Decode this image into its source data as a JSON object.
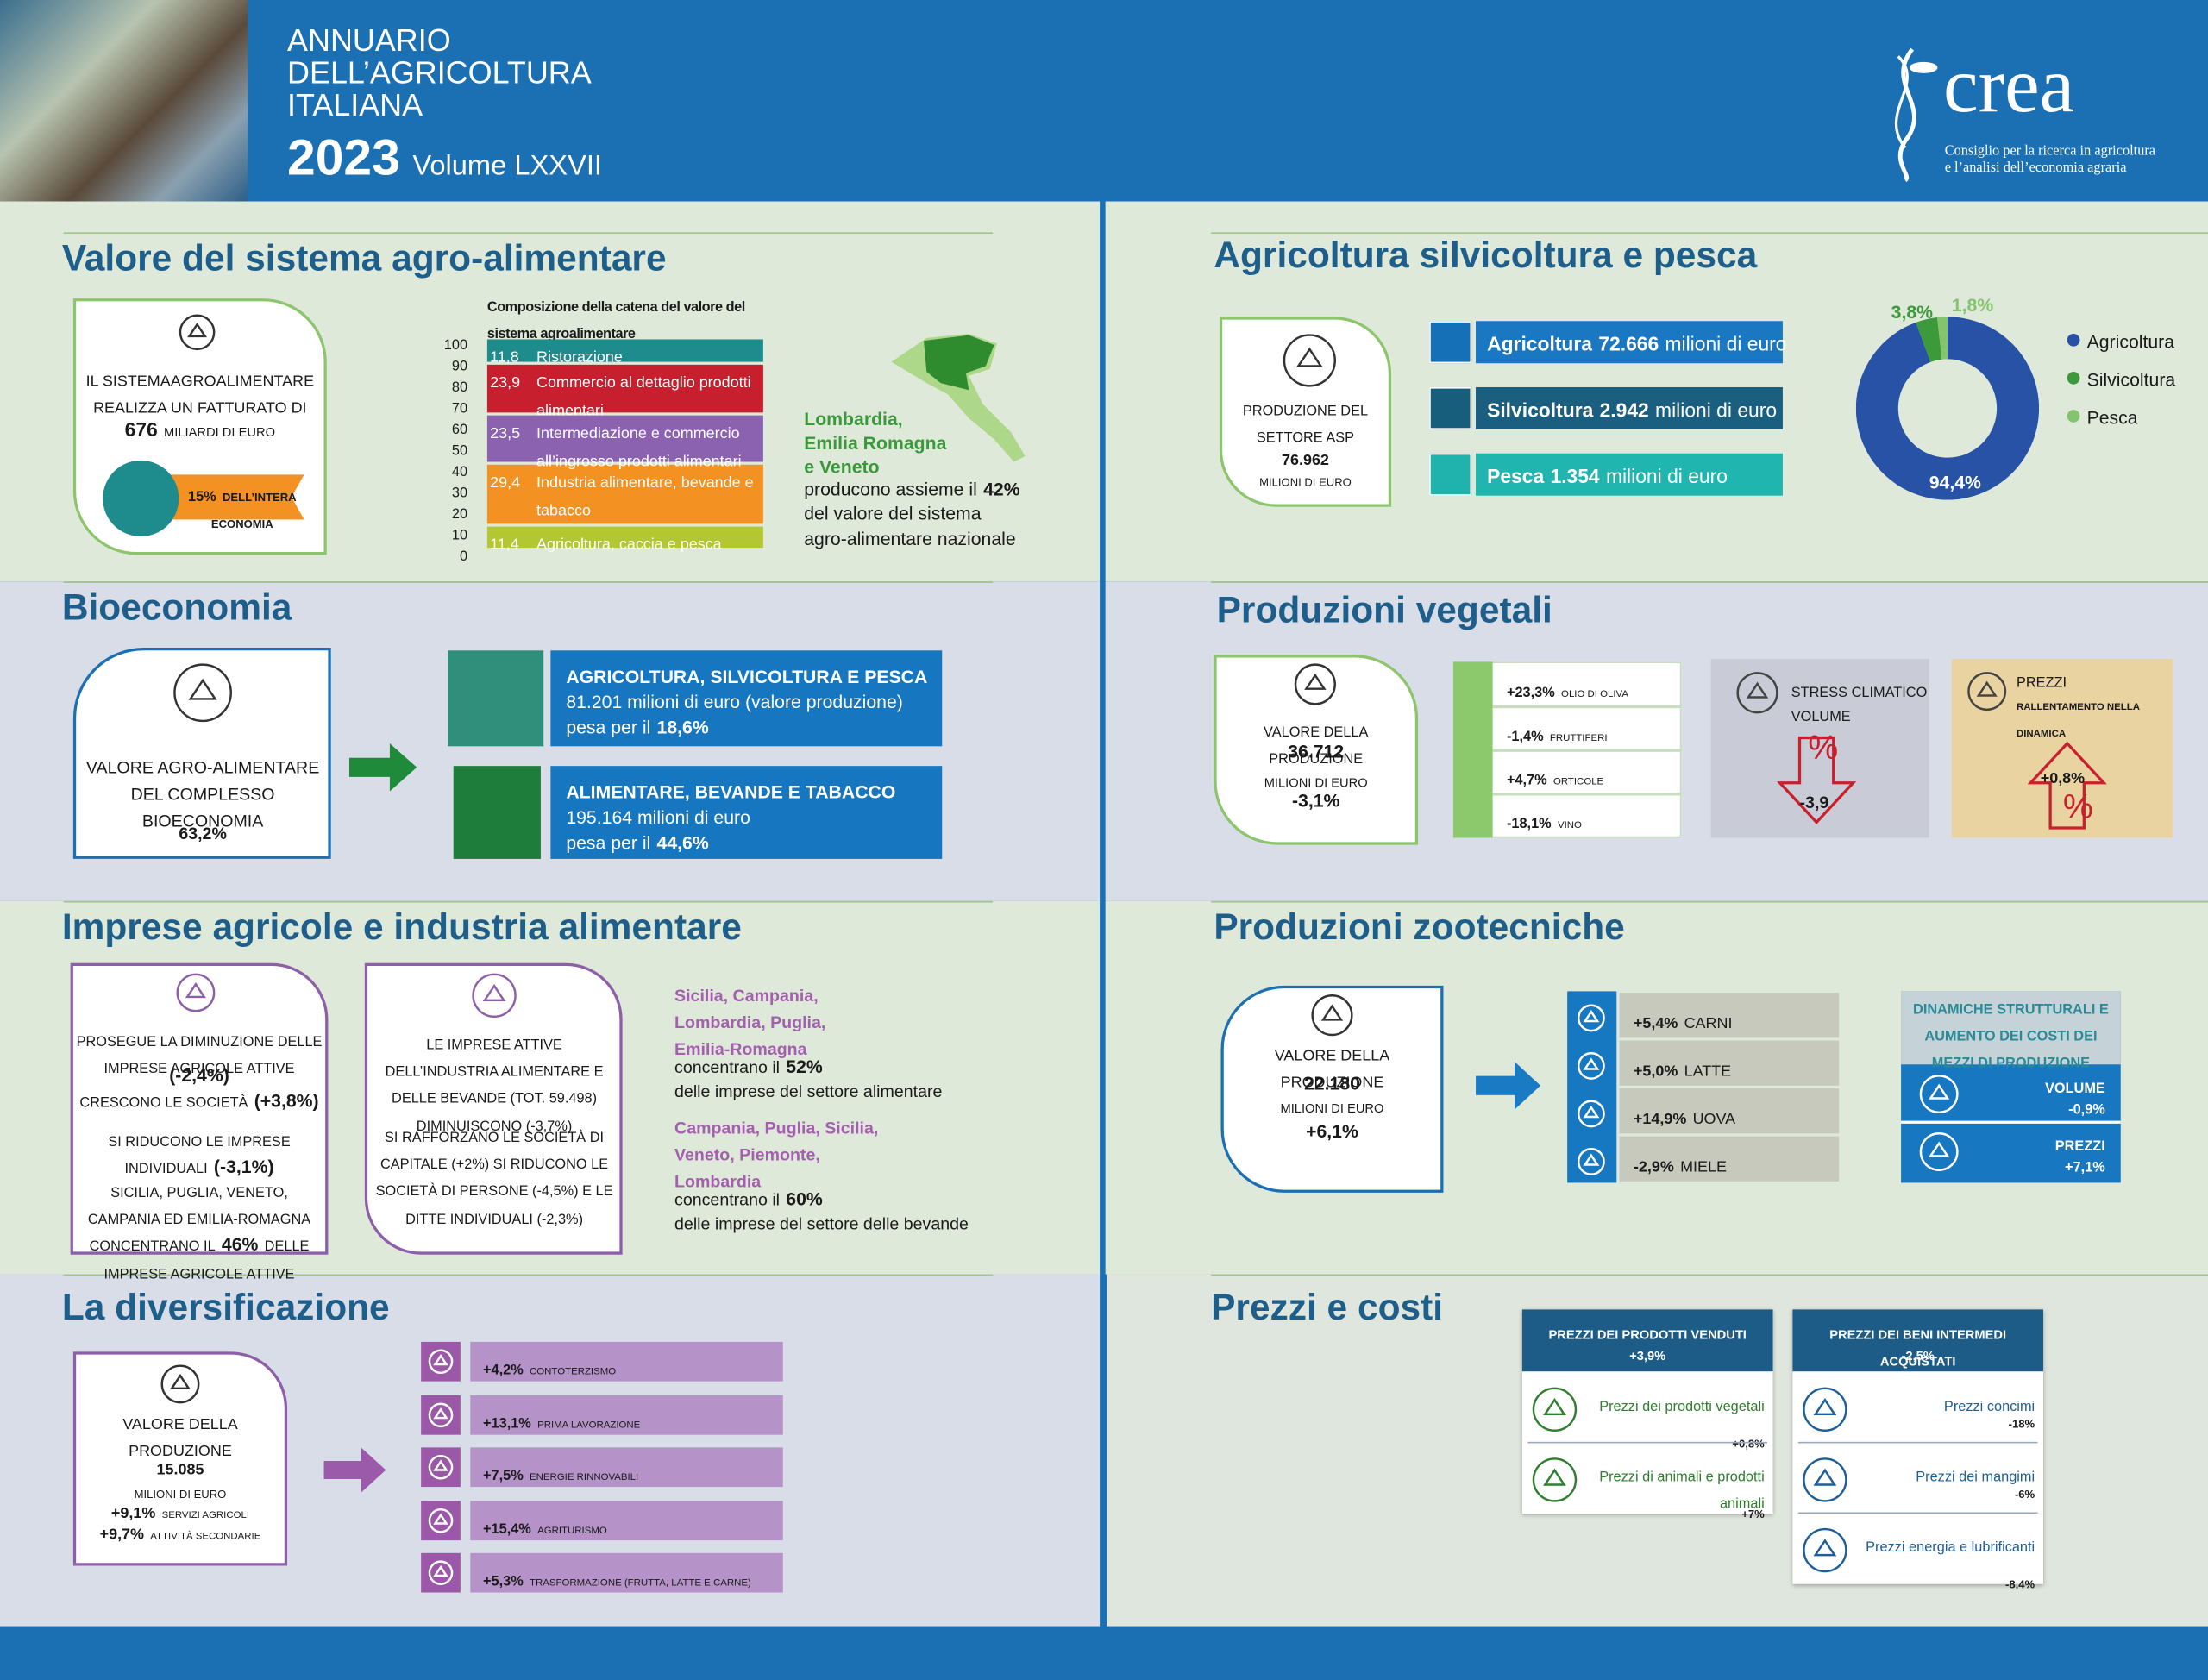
{
  "header": {
    "title_lines": [
      "ANNUARIO",
      "DELL’AGRICOLTURA",
      "ITALIANA"
    ],
    "year": "2023",
    "volume": "Volume LXXVII",
    "logo": "crea",
    "logo_subtitle": [
      "Consiglio per la ricerca in agricoltura",
      "e l’analisi dell’economia agraria"
    ]
  },
  "valore": {
    "title": "Valore del sistema agro-alimentare",
    "card": {
      "text": "IL SISTEMAAGROALIMENTARE REALIZZA UN FATTURATO DI",
      "amount": "676",
      "unit": "MILIARDI DI EURO",
      "badge_value": "15%",
      "badge_text": "DELL’INTERA ECONOMIA"
    },
    "chart": {
      "type": "bar",
      "title": "Composizione della catena del valore del sistema agroalimentare",
      "ylim": [
        0,
        100
      ],
      "yticks": [
        0,
        10,
        20,
        30,
        40,
        50,
        60,
        70,
        80,
        90,
        100
      ],
      "categories": [
        "Agricoltura, caccia e pesca",
        "Industria alimentare, bevande e tabacco",
        "Intermediazione e commercio all’ingrosso prodotti alimentari",
        "Commercio al dettaglio prodotti alimentari",
        "Ristorazione"
      ],
      "values": [
        11.4,
        29.4,
        23.5,
        23.9,
        11.8
      ],
      "value_labels": [
        "11,4",
        "29,4",
        "23,5",
        "23,9",
        "11,8"
      ],
      "colors": [
        "#b3c733",
        "#f39222",
        "#8a62b0",
        "#c71f2e",
        "#1e8c8c"
      ]
    },
    "region": {
      "names": [
        "Lombardia,",
        "Emilia Romagna",
        "e Veneto"
      ],
      "text": "producono assieme il",
      "share": "42%",
      "text2": "del valore del sistema",
      "text3": "agro-alimentare nazionale"
    }
  },
  "asp": {
    "title": "Agricoltura silvicoltura e pesca",
    "card": {
      "text": "PRODUZIONE DEL SETTORE ASP",
      "value": "76.962",
      "unit": "MILIONI DI EURO"
    },
    "bars": [
      {
        "name": "Agricoltura",
        "value": "72.666",
        "unit": "milioni di euro"
      },
      {
        "name": "Silvicoltura",
        "value": "2.942",
        "unit": "milioni di euro"
      },
      {
        "name": "Pesca",
        "value": "1.354",
        "unit": "milioni di euro"
      }
    ],
    "chart": {
      "type": "pie",
      "categories": [
        "Agricoltura",
        "Silvicoltura",
        "Pesca"
      ],
      "values": [
        94.4,
        3.8,
        1.8
      ],
      "value_labels": [
        "94,4%",
        "3,8%",
        "1,8%"
      ],
      "colors": [
        "#2752a5",
        "#3d9a3b",
        "#84c46e"
      ]
    }
  },
  "bio": {
    "title": "Bioeconomia",
    "card": {
      "text": "VALORE AGRO-ALIMENTARE DEL COMPLESSO BIOECONOMIA",
      "value": "63,2%"
    },
    "items": [
      {
        "title": "AGRICOLTURA, SILVICOLTURA E PESCA",
        "text": "81.201 milioni di euro (valore produzione)",
        "share_text": "pesa per il",
        "share": "18,6%"
      },
      {
        "title": "ALIMENTARE, BEVANDE E TABACCO",
        "text": "195.164 milioni di euro",
        "share_text": "pesa per il",
        "share": "44,6%"
      }
    ]
  },
  "vegetali": {
    "title": "Produzioni vegetali",
    "card": {
      "text": "VALORE DELLA PRODUZIONE",
      "value": "36.712",
      "unit": "MILIONI DI EURO",
      "change": "-3,1%"
    },
    "items": [
      {
        "change": "+23,3%",
        "name": "OLIO DI OLIVA"
      },
      {
        "change": "-1,4%",
        "name": "FRUTTIFERI"
      },
      {
        "change": "+4,7%",
        "name": "ORTICOLE"
      },
      {
        "change": "-18,1%",
        "name": "VINO"
      }
    ],
    "stress": {
      "title": "STRESS CLIMATICO",
      "subtitle": "VOLUME",
      "symbol": "%",
      "change": "-3,9"
    },
    "prezzi": {
      "title": "PREZZI",
      "subtitle": "RALLENTAMENTO NELLA DINAMICA",
      "change": "+0,8%",
      "symbol": "%"
    }
  },
  "imprese": {
    "title": "Imprese agricole e industria alimentare",
    "agricole": {
      "p1": "PROSEGUE LA DIMINUZIONE DELLE IMPRESE AGRICOLE ATTIVE",
      "v1": "(-2,4%)",
      "p2": "CRESCONO LE SOCIETÀ",
      "v2": "(+3,8%)",
      "p3": "SI RIDUCONO LE IMPRESE INDIVIDUALI",
      "v3": "(-3,1%)",
      "p4": "SICILIA, PUGLIA, VENETO, CAMPANIA ED EMILIA-ROMAGNA CONCENTRANO IL",
      "v4": "46%",
      "p5": "DELLE IMPRESE AGRICOLE ATTIVE"
    },
    "industria": {
      "p1": "LE IMPRESE ATTIVE DELL’INDUSTRIA ALIMENTARE E DELLE BEVANDE (TOT. 59.498) DIMINUISCONO (-3,7%)",
      "p2": "SI RAFFORZANO LE SOCIETÀ DI CAPITALE (+2%) SI RIDUCONO LE SOCIETÀ DI PERSONE (-4,5%) E LE DITTE INDIVIDUALI (-2,3%)"
    },
    "alimentare": {
      "regions": "Sicilia, Campania, Lombardia, Puglia, Emilia-Romagna",
      "text": "concentrano il",
      "share": "52%",
      "text2": "delle imprese del settore alimentare"
    },
    "bevande": {
      "regions": "Campania, Puglia, Sicilia, Veneto, Piemonte, Lombardia",
      "text": "concentrano il",
      "share": "60%",
      "text2": "delle imprese del settore delle bevande"
    }
  },
  "zootecniche": {
    "title": "Produzioni zootecniche",
    "card": {
      "text": "VALORE DELLA PRODUZIONE",
      "value": "22.180",
      "unit": "MILIONI DI EURO",
      "change": "+6,1%"
    },
    "items": [
      {
        "change": "+5,4%",
        "name": "CARNI"
      },
      {
        "change": "+5,0%",
        "name": "LATTE"
      },
      {
        "change": "+14,9%",
        "name": "UOVA"
      },
      {
        "change": "-2,9%",
        "name": "MIELE"
      }
    ],
    "dinamiche": {
      "title": "DINAMICHE STRUTTURALI E AUMENTO DEI COSTI DEI MEZZI DI PRODUZIONE",
      "rows": [
        {
          "name": "VOLUME",
          "change": "-0,9%"
        },
        {
          "name": "PREZZI",
          "change": "+7,1%"
        }
      ]
    }
  },
  "diversificazione": {
    "title": "La diversificazione",
    "card": {
      "text": "VALORE DELLA PRODUZIONE",
      "value": "15.085",
      "unit": "MILIONI DI EURO",
      "notes": [
        {
          "change": "+9,1%",
          "name": "SERVIZI AGRICOLI"
        },
        {
          "change": "+9,7%",
          "name": "ATTIVITÀ SECONDARIE"
        }
      ]
    },
    "items": [
      {
        "change": "+4,2%",
        "name": "CONTOTERZISMO"
      },
      {
        "change": "+13,1%",
        "name": "PRIMA LAVORAZIONE"
      },
      {
        "change": "+7,5%",
        "name": "ENERGIE RINNOVABILI"
      },
      {
        "change": "+15,4%",
        "name": "AGRITURISMO"
      },
      {
        "change": "+5,3%",
        "name": "TRASFORMAZIONE (FRUTTA, LATTE E CARNE)"
      }
    ]
  },
  "prezzi": {
    "title": "Prezzi e costi",
    "venduti": {
      "title": "PREZZI DEI PRODOTTI VENDUTI",
      "change": "+3,9%",
      "rows": [
        {
          "name": "Prezzi dei prodotti vegetali",
          "change": "+0,8%"
        },
        {
          "name": "Prezzi di animali e prodotti animali",
          "change": "+7%"
        }
      ]
    },
    "acquistati": {
      "title": "PREZZI DEI BENI INTERMEDI ACQUISTATI",
      "change": "-2,5%",
      "rows": [
        {
          "name": "Prezzi concimi",
          "change": "-18%"
        },
        {
          "name": "Prezzi dei mangimi",
          "change": "-6%"
        },
        {
          "name": "Prezzi energia e lubrificanti",
          "change": "-8,4%"
        }
      ]
    }
  }
}
